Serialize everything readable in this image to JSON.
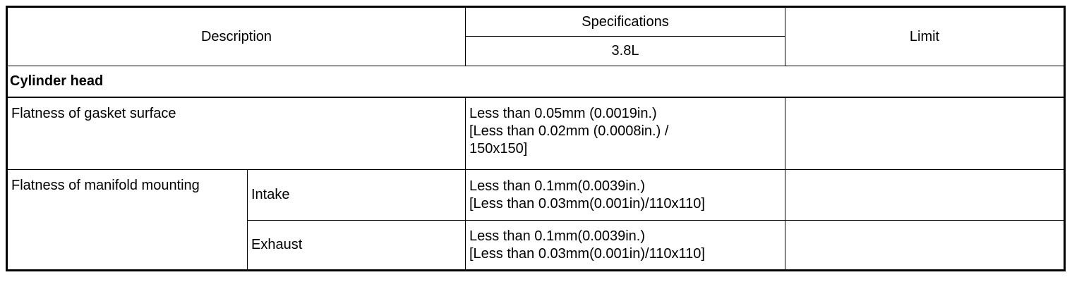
{
  "header": {
    "description": "Description",
    "specifications": "Specifications",
    "variant": "3.8L",
    "limit": "Limit"
  },
  "section": "Cylinder head",
  "rows": [
    {
      "description": "Flatness of gasket surface",
      "spec_lines": [
        "Less than 0.05mm (0.0019in.)",
        "[Less than 0.02mm (0.0008in.) /",
        "150x150]"
      ],
      "limit": ""
    },
    {
      "description": "Flatness of manifold mounting",
      "sub": "Intake",
      "spec_lines": [
        "Less than 0.1mm(0.0039in.)",
        "[Less than 0.03mm(0.001in)/110x110]"
      ],
      "limit": ""
    },
    {
      "description": "",
      "sub": "Exhaust",
      "spec_lines": [
        "Less than 0.1mm(0.0039in.)",
        "[Less than 0.03mm(0.001in)/110x110]"
      ],
      "limit": ""
    }
  ]
}
